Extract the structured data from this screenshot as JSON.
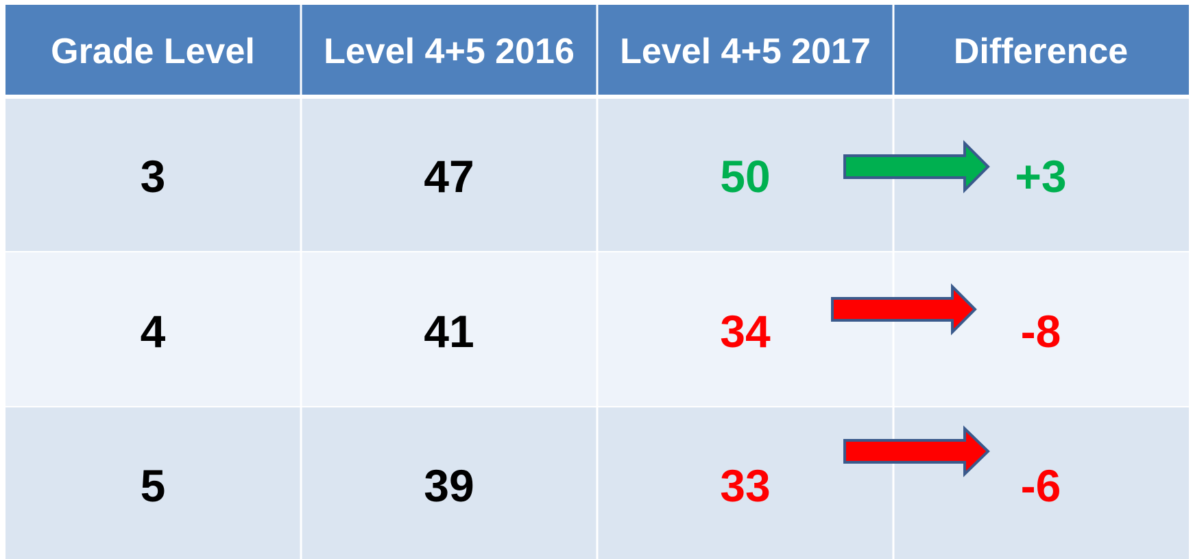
{
  "table": {
    "header": [
      "Grade Level",
      "Level 4+5 2016",
      "Level 4+5 2017",
      "Difference"
    ],
    "rows": [
      [
        3,
        47,
        50,
        "+3"
      ],
      [
        4,
        41,
        34,
        "-8"
      ],
      [
        5,
        39,
        33,
        "-6"
      ]
    ]
  }
}
